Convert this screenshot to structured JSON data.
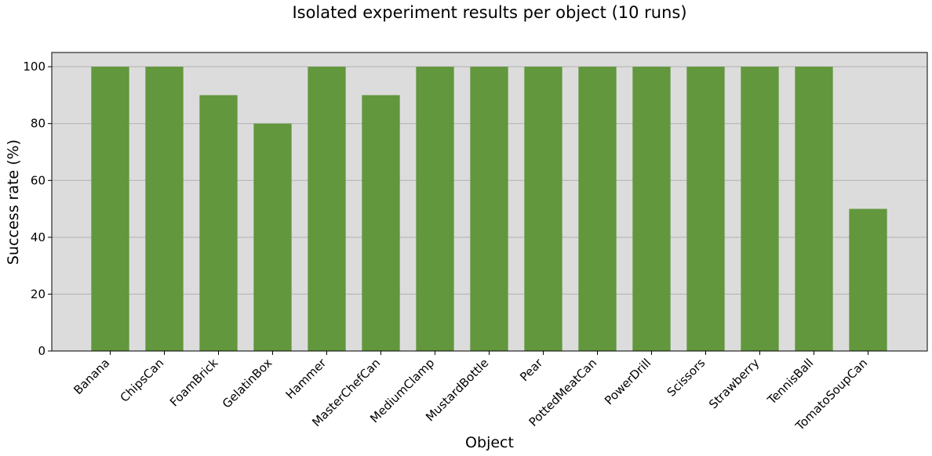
{
  "colors": {
    "bar": "#62973d",
    "plot_background": "#dcdcdc",
    "grid": "#b0b0b0",
    "axis": "#000000"
  },
  "chart_data": {
    "type": "bar",
    "title": "Isolated experiment results per object (10 runs)",
    "xlabel": "Object",
    "ylabel": "Success rate (%)",
    "ylim": [
      0,
      105
    ],
    "yticks": [
      0,
      20,
      40,
      60,
      80,
      100
    ],
    "grid": "horizontal",
    "categories": [
      "Banana",
      "ChipsCan",
      "FoamBrick",
      "GelatinBox",
      "Hammer",
      "MasterChefCan",
      "MediumClamp",
      "MustardBottle",
      "Pear",
      "PottedMeatCan",
      "PowerDrill",
      "Scissors",
      "Strawberry",
      "TennisBall",
      "TomatoSoupCan"
    ],
    "values": [
      100,
      100,
      90,
      80,
      100,
      90,
      100,
      100,
      100,
      100,
      100,
      100,
      100,
      100,
      50
    ]
  }
}
